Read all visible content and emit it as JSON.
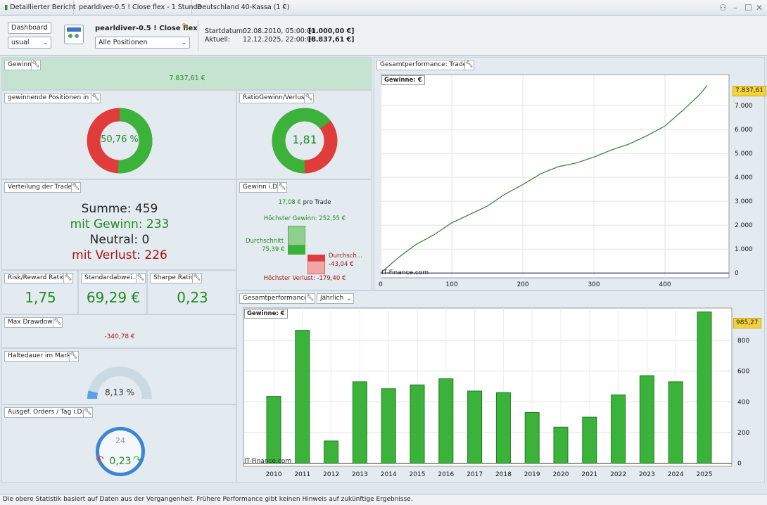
{
  "titlebar": {
    "report_title": "Detaillierter Bericht",
    "strategy_tab": "pearldiver-0.5 ! Close flex - 1 Stunde",
    "instrument_tab": "Deutschland 40-Kassa (1 €)"
  },
  "toolbar": {
    "view_select": "Dashboard",
    "layout_select": "usual",
    "strategy_name": "pearldiver-0.5 ! Close flex",
    "positions_select": "Alle Positionen",
    "start_label": "Startdatum:",
    "start_date": "02.08.2010, 05:00:00",
    "start_value": "[1.000,00 €]",
    "current_label": "Aktuell:",
    "current_date": "12.12.2025, 22:00:00",
    "current_value": "[8.837,61 €]"
  },
  "gain": {
    "title": "Gewinn",
    "value": "7.837,61 €"
  },
  "win_pct": {
    "title": "gewinnende Positionen in %",
    "label": "50,76 %",
    "fraction": 0.5076
  },
  "ratio": {
    "title": "RatioGewinn/Verlust",
    "label": "1,81",
    "fraction": 0.644
  },
  "distribution": {
    "title": "Verteilung der Trades",
    "sum": "Summe: 459",
    "wins": "mit Gewinn: 233",
    "neutral": "Neutral: 0",
    "losses": "mit Verlust: 226"
  },
  "gain_id": {
    "title": "Gewinn i.D.",
    "per_trade_value": "17,08 €",
    "per_trade_label": "pro Trade",
    "max_win": "Höchster Gewinn: 252,55 €",
    "avg_win_label": "Durchschnitt",
    "avg_win_value": "75,39 €",
    "avg_loss_label": "Durchsch...",
    "avg_loss_value": "-43,04 €",
    "max_loss": "Höchster Verlust: -179,40 €"
  },
  "risk_reward": {
    "title": "Risk/Reward Ratio",
    "value": "1,75"
  },
  "std_dev": {
    "title": "Standardabwei...",
    "value": "69,29 €"
  },
  "sharpe": {
    "title": "Sharpe Ratio",
    "value": "0,23"
  },
  "drawdown": {
    "title": "Max Drawdown",
    "value": "-340,78 €"
  },
  "holding": {
    "title": "Haltedauer im Markt",
    "label": "8,13 %",
    "fraction": 0.0813
  },
  "orders": {
    "title": "Ausgef. Orders / Tag i.D.",
    "value": "0,23",
    "clock_number": "24"
  },
  "perf_trades": {
    "title": "Gesamtperformance: Trades",
    "legend": "Gewinne: €",
    "watermark": "IT-Finance.com",
    "last_label": "7.837,61",
    "colors": {
      "line_up": "#2e7d32",
      "line_down": "#b71c1c",
      "zero_line": "#2b2b7a"
    }
  },
  "perf_yearly": {
    "title": "Gesamtperformance",
    "period_select": "Jährlich",
    "legend": "Gewinne: €",
    "watermark": "IT-Finance.com",
    "last_label": "985,27",
    "colors": {
      "bar": "#3bb33b",
      "bar_border": "#1e7a1e"
    }
  },
  "footer": {
    "text": "Die obere Statistik basiert auf Daten aus der Vergangenheit. Frühere Performance gibt keinen Hinweis auf zukünftige Ergebnisse."
  },
  "chart_data": [
    {
      "type": "line",
      "title": "Gesamtperformance: Trades",
      "series": [
        {
          "name": "Gewinne: €",
          "x": [
            0,
            25,
            50,
            75,
            100,
            125,
            150,
            175,
            200,
            225,
            250,
            275,
            300,
            325,
            350,
            375,
            400,
            425,
            450,
            459
          ],
          "values": [
            0,
            650,
            1200,
            1600,
            2100,
            2450,
            2800,
            3300,
            3700,
            4150,
            4450,
            4600,
            4850,
            5150,
            5400,
            5750,
            6150,
            6800,
            7500,
            7837.61
          ]
        }
      ],
      "x_ticks": [
        0,
        100,
        200,
        300,
        400
      ],
      "y_ticks": [
        "0",
        "1.000",
        "2.000",
        "3.000",
        "4.000",
        "5.000",
        "6.000",
        "7.000"
      ],
      "xlim": [
        0,
        490
      ],
      "ylim": [
        -200,
        8300
      ],
      "grid": true
    },
    {
      "type": "bar",
      "title": "Gesamtperformance",
      "categories": [
        "2010",
        "2011",
        "2012",
        "2013",
        "2014",
        "2015",
        "2016",
        "2017",
        "2018",
        "2019",
        "2020",
        "2021",
        "2022",
        "2023",
        "2024",
        "2025"
      ],
      "series": [
        {
          "name": "Gewinne: €",
          "values": [
            435,
            865,
            145,
            530,
            485,
            510,
            550,
            470,
            460,
            330,
            235,
            300,
            445,
            570,
            530,
            985.27
          ]
        }
      ],
      "y_ticks": [
        "0",
        "200",
        "400",
        "600",
        "800"
      ],
      "ylim": [
        -20,
        1010
      ],
      "grid": true
    }
  ]
}
